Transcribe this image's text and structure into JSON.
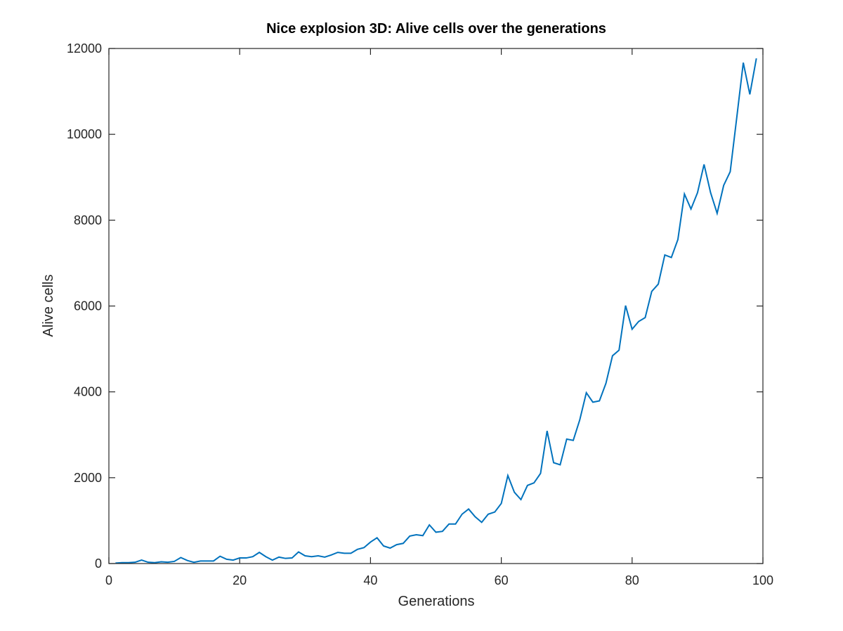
{
  "chart_data": {
    "type": "line",
    "title": "Nice explosion 3D: Alive cells over the generations",
    "xlabel": "Generations",
    "ylabel": "Alive cells",
    "xlim": [
      0,
      100
    ],
    "ylim": [
      0,
      12000
    ],
    "xticks": [
      0,
      20,
      40,
      60,
      80,
      100
    ],
    "yticks": [
      0,
      2000,
      4000,
      6000,
      8000,
      10000,
      12000
    ],
    "grid": false,
    "line_color": "#0072bd",
    "series": [
      {
        "x": [
          1,
          2,
          3,
          4,
          5,
          6,
          7,
          8,
          9,
          10,
          11,
          12,
          13,
          14,
          15,
          16,
          17,
          18,
          19,
          20,
          21,
          22,
          23,
          24,
          25,
          26,
          27,
          28,
          29,
          30,
          31,
          32,
          33,
          34,
          35,
          36,
          37,
          38,
          39,
          40,
          41,
          42,
          43,
          44,
          45,
          46,
          47,
          48,
          49,
          50,
          51,
          52,
          53,
          54,
          55,
          56,
          57,
          58,
          59,
          60,
          61,
          62,
          63,
          64,
          65,
          66,
          67,
          68,
          69,
          70,
          71,
          72,
          73,
          74,
          75,
          76,
          77,
          78,
          79,
          80,
          81,
          82,
          83,
          84,
          85,
          86,
          87,
          88,
          89,
          90,
          91,
          92,
          93,
          94,
          95,
          96,
          97,
          98,
          99
        ],
        "y": [
          10,
          20,
          20,
          30,
          80,
          30,
          20,
          40,
          30,
          50,
          140,
          70,
          30,
          60,
          60,
          60,
          170,
          100,
          80,
          130,
          130,
          160,
          260,
          160,
          80,
          150,
          120,
          130,
          270,
          180,
          160,
          180,
          150,
          200,
          260,
          240,
          240,
          330,
          370,
          500,
          600,
          410,
          360,
          440,
          470,
          640,
          670,
          650,
          900,
          730,
          750,
          920,
          920,
          1150,
          1270,
          1090,
          960,
          1150,
          1200,
          1400,
          2050,
          1660,
          1490,
          1820,
          1880,
          2100,
          3090,
          2350,
          2300,
          2900,
          2870,
          3350,
          3980,
          3760,
          3790,
          4200,
          4840,
          4970,
          6010,
          5460,
          5640,
          5730,
          6340,
          6510,
          7190,
          7130,
          7550,
          8610,
          8260,
          8640,
          9300,
          8640,
          8160,
          8810,
          9130,
          10390,
          11670,
          10930,
          11770
        ]
      }
    ]
  }
}
